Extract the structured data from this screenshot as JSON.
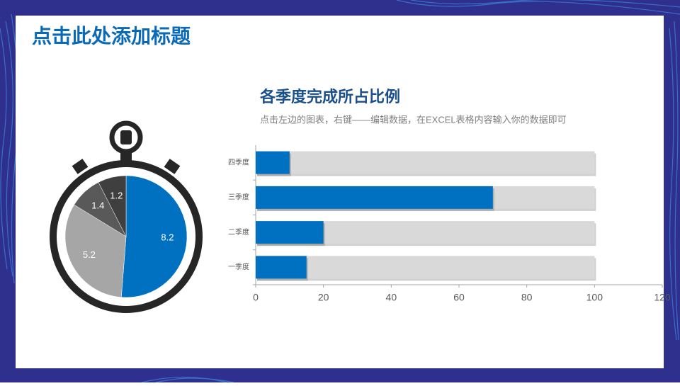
{
  "header": {
    "title": "点击此处添加标题"
  },
  "chart_data": [
    {
      "type": "pie",
      "values": [
        8.2,
        5.2,
        1.4,
        1.2
      ],
      "colors": [
        "#0070c0",
        "#a6a6a6",
        "#595959",
        "#3f3f3f"
      ],
      "start_angle": 0,
      "clockwise": true
    },
    {
      "type": "hbar",
      "title": "各季度完成所占比例",
      "subtitle": "点击左边的图表，右键——编辑数据，在EXCEL表格内容输入你的数据即可",
      "categories": [
        "一季度",
        "二季度",
        "三季度",
        "四季度"
      ],
      "series": [
        {
          "color": "#d9d9d9",
          "values": [
            100,
            100,
            100,
            100
          ]
        },
        {
          "color": "#0070c0",
          "values": [
            15,
            20,
            70,
            10
          ]
        }
      ],
      "overlap": true,
      "xlim": [
        0,
        120
      ],
      "xticks": [
        0,
        20,
        40,
        60,
        80,
        100,
        120
      ]
    }
  ]
}
